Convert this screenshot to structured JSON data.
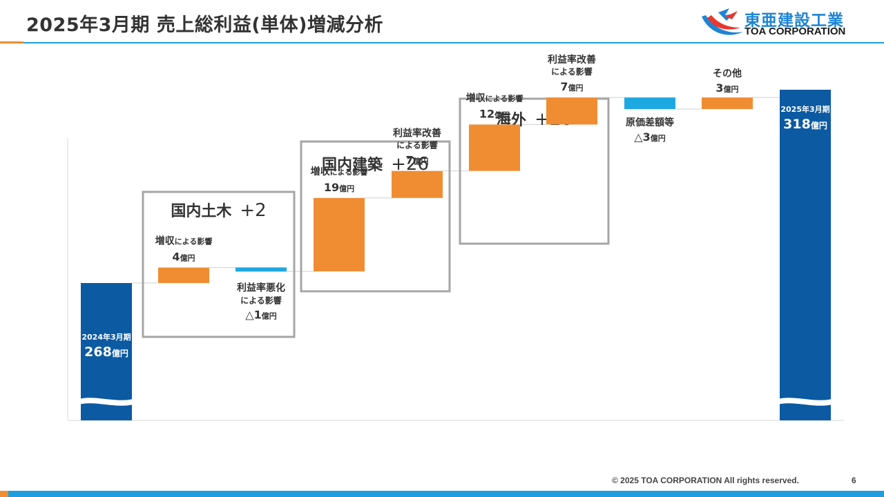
{
  "header": {
    "title": "2025年3月期 売上総利益(単体)増減分析",
    "logo_jp": "東亜建設工業",
    "logo_en": "TOA CORPORATION"
  },
  "footer": {
    "copyright": "© 2025 TOA CORPORATION  All rights reserved.",
    "page_number": "6"
  },
  "colors": {
    "total": "#0b5aa2",
    "increase": "#f08c32",
    "decrease": "#1ea8e2",
    "group_border": "#a6a6a6",
    "title_accent": "#1e9ee0"
  },
  "chart_data": {
    "type": "waterfall",
    "unit": "億円",
    "axis_broken": true,
    "steps": [
      {
        "id": "start",
        "kind": "total",
        "value": 268,
        "label": "2024年3月期",
        "amount": "268",
        "unit": "億円"
      },
      {
        "id": "dc-sales",
        "kind": "increase",
        "value": 4,
        "group": "domestic-civil",
        "label": "増収",
        "sub": "による影響",
        "amount": "4",
        "unit": "億円"
      },
      {
        "id": "dc-margin",
        "kind": "decrease",
        "value": -1,
        "group": "domestic-civil",
        "label": "利益率悪化",
        "sub": "による影響",
        "amount": "△1",
        "unit": "億円"
      },
      {
        "id": "db-sales",
        "kind": "increase",
        "value": 19,
        "group": "domestic-building",
        "label": "増収",
        "sub": "による影響",
        "amount": "19",
        "unit": "億円"
      },
      {
        "id": "db-margin",
        "kind": "increase",
        "value": 7,
        "group": "domestic-building",
        "label": "利益率改善",
        "sub": "による影響",
        "amount": "7",
        "unit": "億円"
      },
      {
        "id": "ov-sales",
        "kind": "increase",
        "value": 12,
        "group": "overseas",
        "label": "増収",
        "sub": "による影響",
        "amount": "12",
        "unit": "億円"
      },
      {
        "id": "ov-margin",
        "kind": "increase",
        "value": 7,
        "group": "overseas",
        "label": "利益率改善",
        "sub": "による影響",
        "amount": "7",
        "unit": "億円"
      },
      {
        "id": "cost-diff",
        "kind": "decrease",
        "value": -3,
        "label": "原価差額等",
        "amount": "△3",
        "unit": "億円"
      },
      {
        "id": "other",
        "kind": "increase",
        "value": 3,
        "label": "その他",
        "amount": "3",
        "unit": "億円"
      },
      {
        "id": "end",
        "kind": "total",
        "value": 318,
        "label": "2025年3月期",
        "amount": "318",
        "unit": "億円"
      }
    ],
    "groups": [
      {
        "id": "domestic-civil",
        "name": "国内土木",
        "total": "+2"
      },
      {
        "id": "domestic-building",
        "name": "国内建築",
        "total": "+26"
      },
      {
        "id": "overseas",
        "name": "海外",
        "total": "+20"
      }
    ]
  }
}
